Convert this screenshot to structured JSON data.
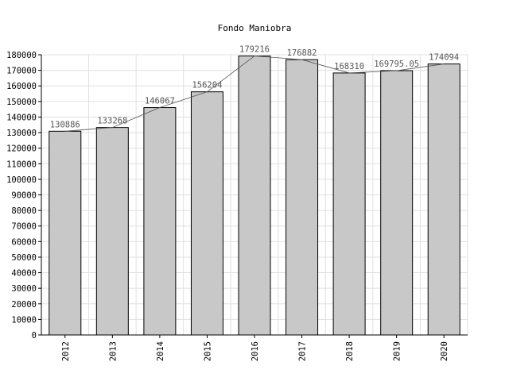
{
  "chart_data": {
    "type": "bar",
    "title": "Fondo Maniobra",
    "xlabel": "",
    "ylabel": "",
    "categories": [
      "2012",
      "2013",
      "2014",
      "2015",
      "2016",
      "2017",
      "2018",
      "2019",
      "2020"
    ],
    "values": [
      130886,
      133268,
      146067,
      156204,
      179216,
      176882,
      168310,
      169795.05,
      174094
    ],
    "value_labels": [
      "130886",
      "133268",
      "146067",
      "156204",
      "179216",
      "176882",
      "168310",
      "169795.05",
      "174094"
    ],
    "ylim": [
      0,
      180000
    ],
    "yticks": [
      0,
      10000,
      20000,
      30000,
      40000,
      50000,
      60000,
      70000,
      80000,
      90000,
      100000,
      110000,
      120000,
      130000,
      140000,
      150000,
      160000,
      170000,
      180000
    ],
    "grid": true,
    "overlay_line": true,
    "colors": {
      "bar_fill": "#c8c8c8",
      "bar_stroke": "#000000",
      "grid": "#e0e0e0",
      "line": "#555555",
      "value_label": "#555555"
    }
  }
}
